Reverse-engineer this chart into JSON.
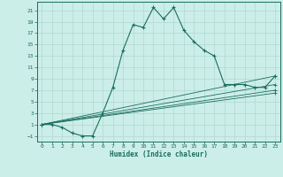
{
  "xlabel": "Humidex (Indice chaleur)",
  "bg_color": "#cceee8",
  "grid_color": "#b0d8d0",
  "line_color": "#1a6e60",
  "xlim": [
    -0.5,
    23.5
  ],
  "ylim": [
    -2.0,
    22.5
  ],
  "xticks": [
    0,
    1,
    2,
    3,
    4,
    5,
    6,
    7,
    8,
    9,
    10,
    11,
    12,
    13,
    14,
    15,
    16,
    17,
    18,
    19,
    20,
    21,
    22,
    23
  ],
  "yticks": [
    -1,
    1,
    3,
    5,
    7,
    9,
    11,
    13,
    15,
    17,
    19,
    21
  ],
  "main_series": [
    [
      0,
      1
    ],
    [
      1,
      1
    ],
    [
      2,
      0.5
    ],
    [
      3,
      -0.5
    ],
    [
      4,
      -1
    ],
    [
      5,
      -1
    ],
    [
      6,
      3
    ],
    [
      7,
      7.5
    ],
    [
      8,
      14
    ],
    [
      9,
      18.5
    ],
    [
      10,
      18
    ],
    [
      11,
      21.5
    ],
    [
      12,
      19.5
    ],
    [
      13,
      21.5
    ],
    [
      14,
      17.5
    ],
    [
      15,
      15.5
    ],
    [
      16,
      14
    ],
    [
      17,
      13
    ],
    [
      18,
      8
    ],
    [
      19,
      8
    ],
    [
      20,
      8
    ],
    [
      21,
      7.5
    ],
    [
      22,
      7.5
    ],
    [
      23,
      9.5
    ]
  ],
  "ref_lines": [
    [
      [
        0,
        1
      ],
      [
        23,
        9.5
      ]
    ],
    [
      [
        0,
        1
      ],
      [
        23,
        8.0
      ]
    ],
    [
      [
        0,
        1
      ],
      [
        23,
        7.0
      ]
    ],
    [
      [
        0,
        1
      ],
      [
        23,
        6.5
      ]
    ]
  ]
}
